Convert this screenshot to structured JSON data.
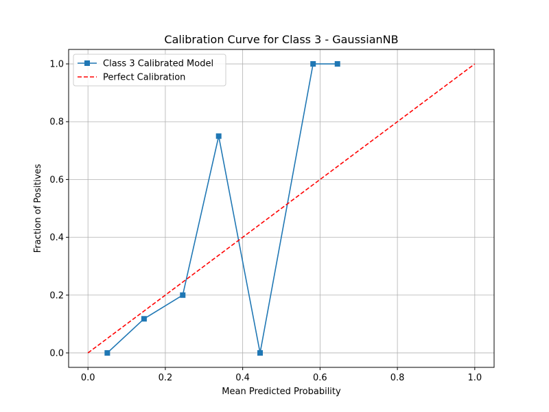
{
  "chart_data": {
    "type": "line",
    "title": "Calibration Curve for Class 3 - GaussianNB",
    "xlabel": "Mean Predicted Probability",
    "ylabel": "Fraction of Positives",
    "xlim": [
      -0.05,
      1.05
    ],
    "ylim": [
      -0.05,
      1.05
    ],
    "x_ticks": [
      0.0,
      0.2,
      0.4,
      0.6,
      0.8,
      1.0
    ],
    "y_ticks": [
      0.0,
      0.2,
      0.4,
      0.6,
      0.8,
      1.0
    ],
    "x_tick_labels": [
      "0.0",
      "0.2",
      "0.4",
      "0.6",
      "0.8",
      "1.0"
    ],
    "y_tick_labels": [
      "0.0",
      "0.2",
      "0.4",
      "0.6",
      "0.8",
      "1.0"
    ],
    "grid": true,
    "legend_position": "top-left",
    "series": [
      {
        "name": "Class 3 Calibrated Model",
        "color": "#1f77b4",
        "line_style": "solid",
        "marker": "square",
        "x": [
          0.05,
          0.145,
          0.245,
          0.338,
          0.445,
          0.582,
          0.645
        ],
        "y": [
          0.0,
          0.118,
          0.2,
          0.75,
          0.0,
          1.0,
          1.0
        ]
      },
      {
        "name": "Perfect Calibration",
        "color": "#ff0000",
        "line_style": "dashed",
        "marker": "none",
        "x": [
          0.0,
          1.0
        ],
        "y": [
          0.0,
          1.0
        ]
      }
    ]
  }
}
